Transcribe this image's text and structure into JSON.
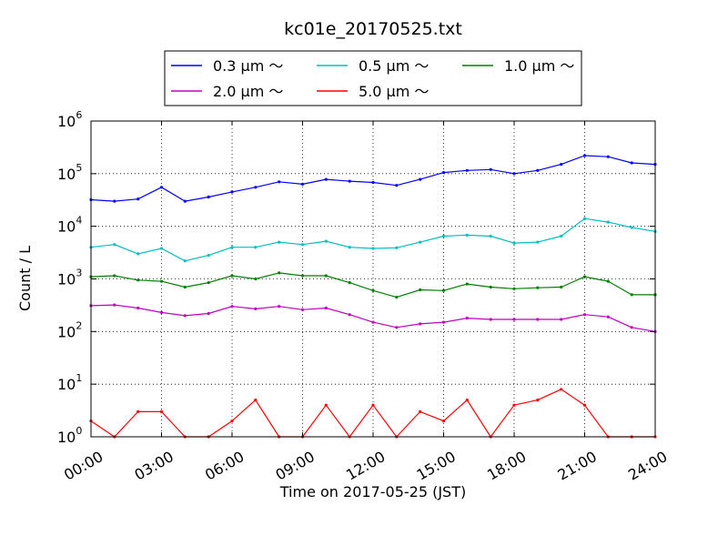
{
  "chart_data": {
    "type": "line",
    "title": "kc01e_20170525.txt",
    "xlabel": "Time on 2017-05-25 (JST)",
    "ylabel": "Count / L",
    "yscale": "log",
    "xlim": [
      "2017-05-25T00:00",
      "2017-05-26T00:00"
    ],
    "ylim": [
      1,
      1000000
    ],
    "grid": true,
    "legend_placement": "top-center",
    "xticks": [
      "00:00",
      "03:00",
      "06:00",
      "09:00",
      "12:00",
      "15:00",
      "18:00",
      "21:00",
      "24:00"
    ],
    "yticks": [
      {
        "value": 1,
        "base": "10",
        "exp": "0"
      },
      {
        "value": 10,
        "base": "10",
        "exp": "1"
      },
      {
        "value": 100,
        "base": "10",
        "exp": "2"
      },
      {
        "value": 1000,
        "base": "10",
        "exp": "3"
      },
      {
        "value": 10000,
        "base": "10",
        "exp": "4"
      },
      {
        "value": 100000,
        "base": "10",
        "exp": "5"
      },
      {
        "value": 1000000,
        "base": "10",
        "exp": "6"
      }
    ],
    "x": [
      "2017-05-25T00:00",
      "2017-05-25T01:00",
      "2017-05-25T02:00",
      "2017-05-25T03:00",
      "2017-05-25T04:00",
      "2017-05-25T05:00",
      "2017-05-25T06:00",
      "2017-05-25T07:00",
      "2017-05-25T08:00",
      "2017-05-25T09:00",
      "2017-05-25T10:00",
      "2017-05-25T11:00",
      "2017-05-25T12:00",
      "2017-05-25T13:00",
      "2017-05-25T14:00",
      "2017-05-25T15:00",
      "2017-05-25T16:00",
      "2017-05-25T17:00",
      "2017-05-25T18:00",
      "2017-05-25T19:00",
      "2017-05-25T20:00",
      "2017-05-25T21:00",
      "2017-05-25T22:00",
      "2017-05-25T23:00",
      "2017-05-26T00:00"
    ],
    "series": [
      {
        "name": "0.3 μm ～",
        "color": "#0000ff",
        "values": [
          32000,
          30000,
          33000,
          55000,
          30000,
          36000,
          45000,
          55000,
          70000,
          63000,
          78000,
          72000,
          68000,
          60000,
          78000,
          105000,
          115000,
          120000,
          100000,
          115000,
          150000,
          220000,
          210000,
          160000,
          150000
        ]
      },
      {
        "name": "0.5 μm ～",
        "color": "#00bfbf",
        "values": [
          4000,
          4500,
          3000,
          3800,
          2200,
          2800,
          4000,
          4000,
          5000,
          4500,
          5200,
          4000,
          3800,
          3900,
          5000,
          6500,
          6800,
          6500,
          4800,
          5000,
          6500,
          14000,
          12000,
          9500,
          8000
        ]
      },
      {
        "name": "1.0 μm ～",
        "color": "#008000",
        "values": [
          1100,
          1150,
          950,
          900,
          700,
          850,
          1150,
          1000,
          1300,
          1150,
          1150,
          850,
          600,
          450,
          620,
          600,
          800,
          700,
          650,
          680,
          700,
          1100,
          900,
          500,
          500
        ]
      },
      {
        "name": "2.0 μm ～",
        "color": "#bf00bf",
        "values": [
          310,
          320,
          280,
          230,
          200,
          220,
          300,
          270,
          300,
          260,
          280,
          210,
          150,
          120,
          140,
          150,
          180,
          170,
          170,
          170,
          170,
          210,
          190,
          120,
          100
        ]
      },
      {
        "name": "5.0 μm ～",
        "color": "#ff0000",
        "values": [
          2,
          1,
          3,
          3,
          1,
          1,
          2,
          5,
          1,
          1,
          4,
          1,
          4,
          1,
          3,
          2,
          5,
          1,
          4,
          5,
          8,
          4,
          1,
          1,
          1
        ]
      }
    ]
  }
}
